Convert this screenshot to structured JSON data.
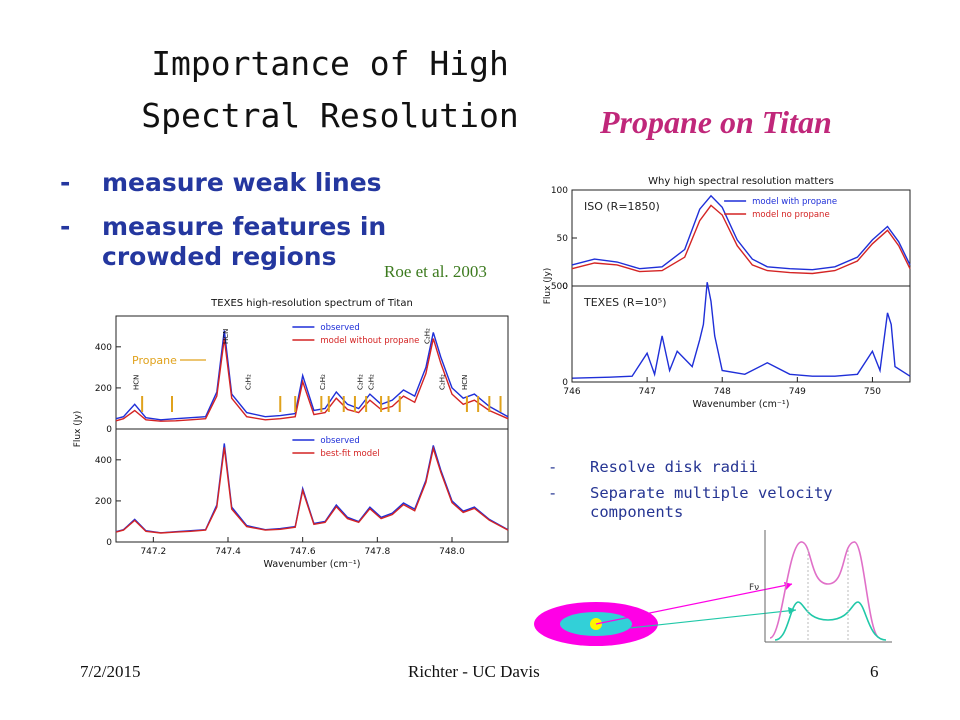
{
  "slide": {
    "title": "Importance of High Spectral Resolution",
    "subtitle": "Propane on Titan",
    "bullets": [
      {
        "dash": "-",
        "text": "measure weak lines"
      },
      {
        "dash": "-",
        "text": "measure features in crowded regions"
      }
    ],
    "citation": "Roe et al. 2003",
    "right_bullets": [
      {
        "dash": "-",
        "text": "Resolve disk radii"
      },
      {
        "dash": "-",
        "text": "Separate multiple velocity components"
      }
    ],
    "footer": {
      "date": "7/2/2015",
      "center": "Richter - UC Davis",
      "page": "6"
    }
  },
  "colors": {
    "title_text": "#111111",
    "subtitle_text": "#c0277a",
    "bullet_text": "#24379f",
    "citation_text": "#3c7a1e",
    "observed_line": "#1f2fd8",
    "model_line": "#d42424",
    "propane_marker": "#e0a21c",
    "disk_outer": "#ff00e6",
    "disk_mid": "#32d0d8",
    "disk_core": "#fff500",
    "profile_pink": "#e070c8",
    "profile_teal": "#20c8a8"
  },
  "chart_data": [
    {
      "type": "line",
      "title": "Why high spectral resolution matters",
      "xlabel": "Wavenumber (cm⁻¹)",
      "ylabel": "Flux (Jy)",
      "xlim": [
        746,
        750.5
      ],
      "x_ticks": [
        "746",
        "747",
        "748",
        "749",
        "750"
      ],
      "panels": [
        {
          "label": "ISO (R=1850)",
          "y_ticks": [
            "0",
            "50",
            "100"
          ],
          "ylim": [
            0,
            100
          ],
          "series": [
            {
              "name": "model with propane",
              "color": "#1f2fd8",
              "x": [
                746.0,
                746.3,
                746.6,
                746.9,
                747.2,
                747.5,
                747.7,
                747.85,
                748.0,
                748.2,
                748.4,
                748.6,
                748.9,
                749.2,
                749.5,
                749.8,
                750.0,
                750.2,
                750.35,
                750.5
              ],
              "y": [
                22,
                28,
                25,
                18,
                20,
                38,
                80,
                94,
                82,
                48,
                28,
                20,
                18,
                17,
                20,
                30,
                48,
                62,
                46,
                22
              ]
            },
            {
              "name": "model no propane",
              "color": "#d42424",
              "x": [
                746.0,
                746.3,
                746.6,
                746.9,
                747.2,
                747.5,
                747.7,
                747.85,
                748.0,
                748.2,
                748.4,
                748.6,
                748.9,
                749.2,
                749.5,
                749.8,
                750.0,
                750.2,
                750.35,
                750.5
              ],
              "y": [
                18,
                24,
                22,
                15,
                16,
                30,
                68,
                84,
                74,
                42,
                22,
                16,
                14,
                13,
                16,
                26,
                44,
                58,
                42,
                18
              ]
            }
          ]
        },
        {
          "label": "TEXES (R=10⁵)",
          "y_ticks": [
            "0",
            "500"
          ],
          "ylim": [
            0,
            500
          ],
          "series": [
            {
              "name": "TEXES",
              "color": "#1f2fd8",
              "x": [
                746.0,
                746.5,
                746.8,
                747.0,
                747.1,
                747.2,
                747.3,
                747.4,
                747.6,
                747.7,
                747.75,
                747.8,
                747.85,
                747.9,
                748.0,
                748.3,
                748.6,
                748.9,
                749.2,
                749.5,
                749.8,
                750.0,
                750.1,
                750.2,
                750.25,
                750.3,
                750.5
              ],
              "y": [
                20,
                25,
                30,
                150,
                40,
                240,
                60,
                160,
                80,
                220,
                300,
                520,
                420,
                240,
                60,
                40,
                100,
                40,
                30,
                30,
                40,
                160,
                60,
                360,
                300,
                80,
                30
              ]
            }
          ]
        }
      ]
    },
    {
      "type": "line",
      "title": "TEXES high-resolution spectrum of Titan",
      "xlabel": "Wavenumber (cm⁻¹)",
      "ylabel": "Flux (Jy)",
      "xlim": [
        747.1,
        748.15
      ],
      "x_ticks": [
        "747.2",
        "747.4",
        "747.6",
        "747.8",
        "748.0"
      ],
      "annotation": "Propane",
      "line_labels": [
        "HCN",
        "HCN",
        "C₂H₂",
        "C₂H₂",
        "C₂H₂",
        "C₂H₂",
        "C₂H₂",
        "HCN",
        "C₂H₂"
      ],
      "panels": [
        {
          "label": "",
          "y_ticks": [
            "0",
            "200",
            "400"
          ],
          "ylim": [
            0,
            550
          ],
          "series": [
            {
              "name": "observed",
              "color": "#1f2fd8",
              "x": [
                747.1,
                747.12,
                747.15,
                747.18,
                747.22,
                747.26,
                747.3,
                747.34,
                747.37,
                747.39,
                747.41,
                747.45,
                747.5,
                747.54,
                747.58,
                747.6,
                747.63,
                747.66,
                747.69,
                747.72,
                747.75,
                747.78,
                747.81,
                747.84,
                747.87,
                747.9,
                747.93,
                747.95,
                747.97,
                748.0,
                748.03,
                748.06,
                748.1,
                748.15
              ],
              "y": [
                50,
                60,
                120,
                55,
                45,
                50,
                55,
                60,
                180,
                480,
                170,
                80,
                60,
                65,
                75,
                260,
                90,
                100,
                180,
                120,
                100,
                170,
                120,
                140,
                190,
                160,
                300,
                470,
                350,
                200,
                150,
                170,
                110,
                60
              ]
            },
            {
              "name": "model without propane",
              "color": "#d42424",
              "x": [
                747.1,
                747.12,
                747.15,
                747.18,
                747.22,
                747.26,
                747.3,
                747.34,
                747.37,
                747.39,
                747.41,
                747.45,
                747.5,
                747.54,
                747.58,
                747.6,
                747.63,
                747.66,
                747.69,
                747.72,
                747.75,
                747.78,
                747.81,
                747.84,
                747.87,
                747.9,
                747.93,
                747.95,
                747.97,
                748.0,
                748.03,
                748.06,
                748.1,
                748.15
              ],
              "y": [
                40,
                50,
                90,
                45,
                38,
                40,
                45,
                50,
                160,
                440,
                150,
                60,
                45,
                50,
                60,
                230,
                70,
                80,
                150,
                95,
                80,
                140,
                95,
                110,
                160,
                130,
                270,
                440,
                320,
                170,
                120,
                140,
                90,
                50
              ]
            }
          ]
        },
        {
          "label": "",
          "y_ticks": [
            "0",
            "200",
            "400"
          ],
          "ylim": [
            0,
            550
          ],
          "series": [
            {
              "name": "observed",
              "color": "#1f2fd8",
              "x": [
                747.1,
                747.12,
                747.15,
                747.18,
                747.22,
                747.26,
                747.3,
                747.34,
                747.37,
                747.39,
                747.41,
                747.45,
                747.5,
                747.54,
                747.58,
                747.6,
                747.63,
                747.66,
                747.69,
                747.72,
                747.75,
                747.78,
                747.81,
                747.84,
                747.87,
                747.9,
                747.93,
                747.95,
                747.97,
                748.0,
                748.03,
                748.06,
                748.1,
                748.15
              ],
              "y": [
                50,
                60,
                110,
                55,
                45,
                50,
                55,
                60,
                180,
                480,
                170,
                80,
                60,
                65,
                75,
                260,
                90,
                100,
                180,
                120,
                100,
                170,
                120,
                140,
                190,
                160,
                300,
                470,
                350,
                200,
                150,
                170,
                110,
                60
              ]
            },
            {
              "name": "best-fit model",
              "color": "#d42424",
              "x": [
                747.1,
                747.12,
                747.15,
                747.18,
                747.22,
                747.26,
                747.3,
                747.34,
                747.37,
                747.39,
                747.41,
                747.45,
                747.5,
                747.54,
                747.58,
                747.6,
                747.63,
                747.66,
                747.69,
                747.72,
                747.75,
                747.78,
                747.81,
                747.84,
                747.87,
                747.9,
                747.93,
                747.95,
                747.97,
                748.0,
                748.03,
                748.06,
                748.1,
                748.15
              ],
              "y": [
                48,
                58,
                105,
                52,
                44,
                48,
                52,
                58,
                170,
                460,
                160,
                75,
                58,
                62,
                72,
                250,
                86,
                96,
                172,
                114,
                96,
                162,
                114,
                134,
                182,
                152,
                290,
                455,
                340,
                192,
                144,
                164,
                106,
                58
              ]
            }
          ]
        }
      ]
    },
    {
      "type": "diagram",
      "ylabel": "Fν",
      "series": [
        {
          "name": "pink profile",
          "color": "#e070c8"
        },
        {
          "name": "teal profile",
          "color": "#20c8a8"
        }
      ]
    }
  ]
}
